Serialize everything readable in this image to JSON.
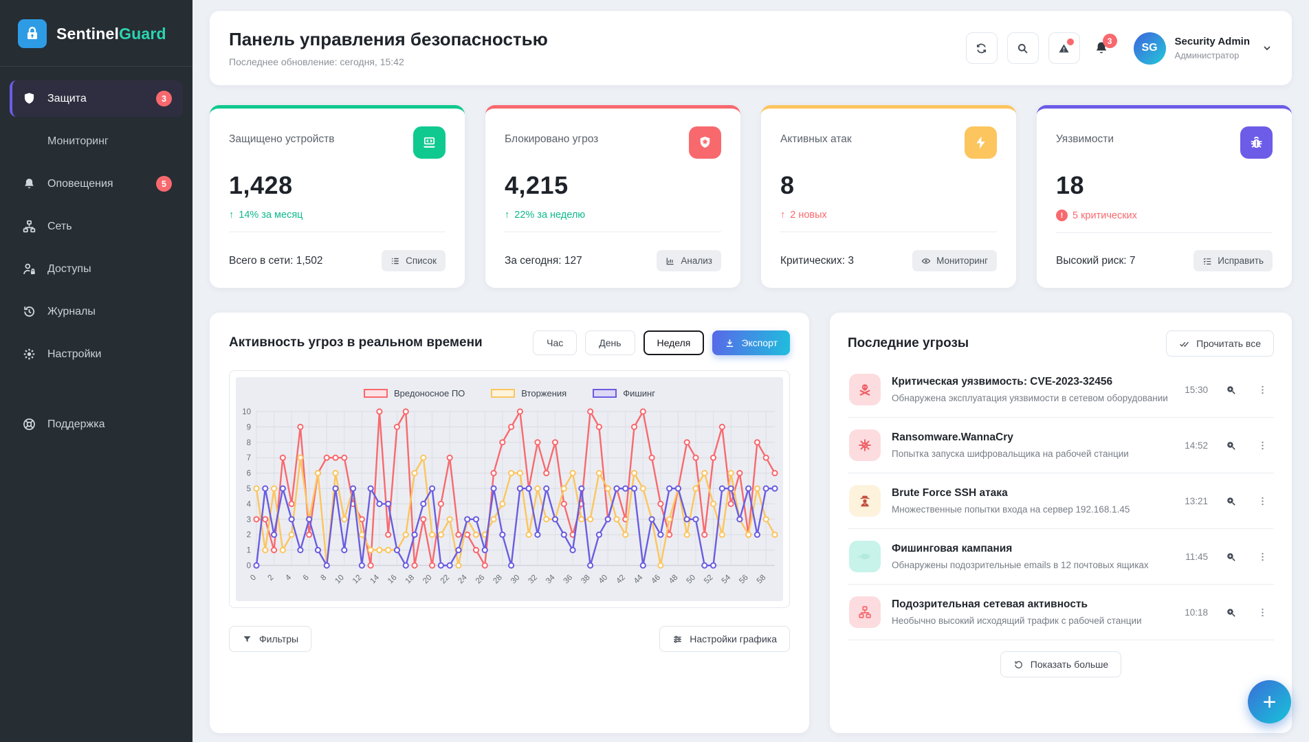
{
  "brand": {
    "primary": "Sentinel",
    "accent": "Guard",
    "accent_color": "#2bd5b2",
    "logo_color": "#2e9be5"
  },
  "sidebar": {
    "items": [
      {
        "label": "Защита",
        "badge": "3",
        "active": true
      },
      {
        "label": "Мониторинг"
      },
      {
        "label": "Оповещения",
        "badge": "5"
      },
      {
        "label": "Сеть"
      },
      {
        "label": "Доступы"
      },
      {
        "label": "Журналы"
      },
      {
        "label": "Настройки"
      },
      {
        "label": "Поддержка"
      }
    ]
  },
  "header": {
    "title": "Панель управления безопасностью",
    "subtitle": "Последнее обновление: сегодня, 15:42",
    "bell_badge": "3",
    "user": {
      "initials": "SG",
      "name": "Security Admin",
      "role": "Администратор"
    }
  },
  "stats": [
    {
      "label": "Защищено устройств",
      "value": "1,428",
      "trend": {
        "arrow": "↑",
        "text": "14% за месяц",
        "color": "#0fb98c"
      },
      "footer": "Всего в сети: 1,502",
      "action": "Список",
      "accent": "#10c98f"
    },
    {
      "label": "Блокировано угроз",
      "value": "4,215",
      "trend": {
        "arrow": "↑",
        "text": "22% за неделю",
        "color": "#0fb98c"
      },
      "footer": "За сегодня: 127",
      "action": "Анализ",
      "accent": "#f8696e"
    },
    {
      "label": "Активных атак",
      "value": "8",
      "trend": {
        "arrow": "↑",
        "text": "2 новых",
        "color": "#f8696e"
      },
      "footer": "Критических: 3",
      "action": "Мониторинг",
      "accent": "#fcc55e"
    },
    {
      "label": "Уязвимости",
      "value": "18",
      "trend": {
        "arrow": "!",
        "text": "5 критических",
        "color": "#f8696e"
      },
      "footer": "Высокий риск: 7",
      "action": "Исправить",
      "accent": "#6c5ce7"
    }
  ],
  "chart_section": {
    "title": "Активность угроз в реальном времени",
    "ranges": [
      "Час",
      "День",
      "Неделя"
    ],
    "active_range": "Неделя",
    "export_label": "Экспорт",
    "filters_label": "Фильтры",
    "settings_label": "Настройки графика"
  },
  "chart_data": {
    "type": "line",
    "x": [
      0,
      1,
      2,
      3,
      4,
      5,
      6,
      7,
      8,
      9,
      10,
      11,
      12,
      13,
      14,
      15,
      16,
      17,
      18,
      19,
      20,
      21,
      22,
      23,
      24,
      25,
      26,
      27,
      28,
      29,
      30,
      31,
      32,
      33,
      34,
      35,
      36,
      37,
      38,
      39,
      40,
      41,
      42,
      43,
      44,
      45,
      46,
      47,
      48,
      49,
      50,
      51,
      52,
      53,
      54,
      55,
      56,
      57,
      58,
      59
    ],
    "x_tick_step": 2,
    "ylim": [
      0,
      10
    ],
    "grid": true,
    "legend_position": "top",
    "series": [
      {
        "name": "Вредоносное ПО",
        "color": "#f8696e",
        "tint": "#fbe3e5",
        "values": [
          3,
          3,
          1,
          7,
          4,
          9,
          2,
          6,
          7,
          7,
          7,
          4,
          3,
          0,
          10,
          2,
          9,
          10,
          0,
          3,
          0,
          4,
          7,
          2,
          2,
          1,
          0,
          6,
          8,
          9,
          10,
          5,
          8,
          6,
          8,
          4,
          2,
          4,
          10,
          9,
          3,
          5,
          3,
          9,
          10,
          7,
          4,
          2,
          5,
          8,
          7,
          2,
          7,
          9,
          4,
          6,
          2,
          8,
          7,
          6
        ]
      },
      {
        "name": "Вторжения",
        "color": "#fcc55e",
        "tint": "#fdf3dc",
        "values": [
          5,
          1,
          5,
          1,
          2,
          7,
          3,
          6,
          0,
          6,
          3,
          5,
          2,
          1,
          1,
          1,
          1,
          2,
          6,
          7,
          2,
          2,
          3,
          0,
          3,
          2,
          2,
          3,
          4,
          6,
          6,
          2,
          5,
          3,
          3,
          5,
          6,
          3,
          3,
          6,
          5,
          3,
          2,
          6,
          5,
          3,
          0,
          3,
          5,
          2,
          5,
          6,
          4,
          2,
          6,
          3,
          2,
          5,
          3,
          2
        ]
      },
      {
        "name": "Фишинг",
        "color": "#6a5ce0",
        "tint": "#dcd8f6",
        "values": [
          0,
          5,
          2,
          5,
          3,
          1,
          3,
          1,
          0,
          5,
          1,
          5,
          0,
          5,
          4,
          4,
          1,
          0,
          2,
          4,
          5,
          0,
          0,
          1,
          3,
          3,
          1,
          5,
          2,
          0,
          5,
          5,
          2,
          5,
          3,
          2,
          1,
          5,
          0,
          2,
          3,
          5,
          5,
          5,
          0,
          3,
          2,
          5,
          5,
          3,
          3,
          0,
          0,
          5,
          5,
          3,
          5,
          2,
          5,
          5
        ]
      }
    ]
  },
  "threats": {
    "title": "Последние угрозы",
    "read_all_label": "Прочитать все",
    "show_more_label": "Показать больше",
    "items": [
      {
        "title": "Критическая уязвимость: CVE-2023-32456",
        "desc": "Обнаружена эксплуатация уязвимости в сетевом оборудовании",
        "time": "15:30",
        "icon_bg": "#fcdcdf",
        "icon_color": "#ef5f67"
      },
      {
        "title": "Ransomware.WannaCry",
        "desc": "Попытка запуска шифровальщика на рабочей станции",
        "time": "14:52",
        "icon_bg": "#fcdcdf",
        "icon_color": "#ef5f67"
      },
      {
        "title": "Brute Force SSH атака",
        "desc": "Множественные попытки входа на сервер 192.168.1.45",
        "time": "13:21",
        "icon_bg": "#fdf2dc",
        "icon_color": "#c44f3f"
      },
      {
        "title": "Фишинговая кампания",
        "desc": "Обнаружены подозрительные emails в 12 почтовых ящиках",
        "time": "11:45",
        "icon_bg": "#c7f3ea",
        "icon_color": "#b4e9de"
      },
      {
        "title": "Подозрительная сетевая активность",
        "desc": "Необычно высокий исходящий трафик с рабочей станции",
        "time": "10:18",
        "icon_bg": "#fcdcdf",
        "icon_color": "#f66d72"
      }
    ]
  },
  "fab_label": "+"
}
